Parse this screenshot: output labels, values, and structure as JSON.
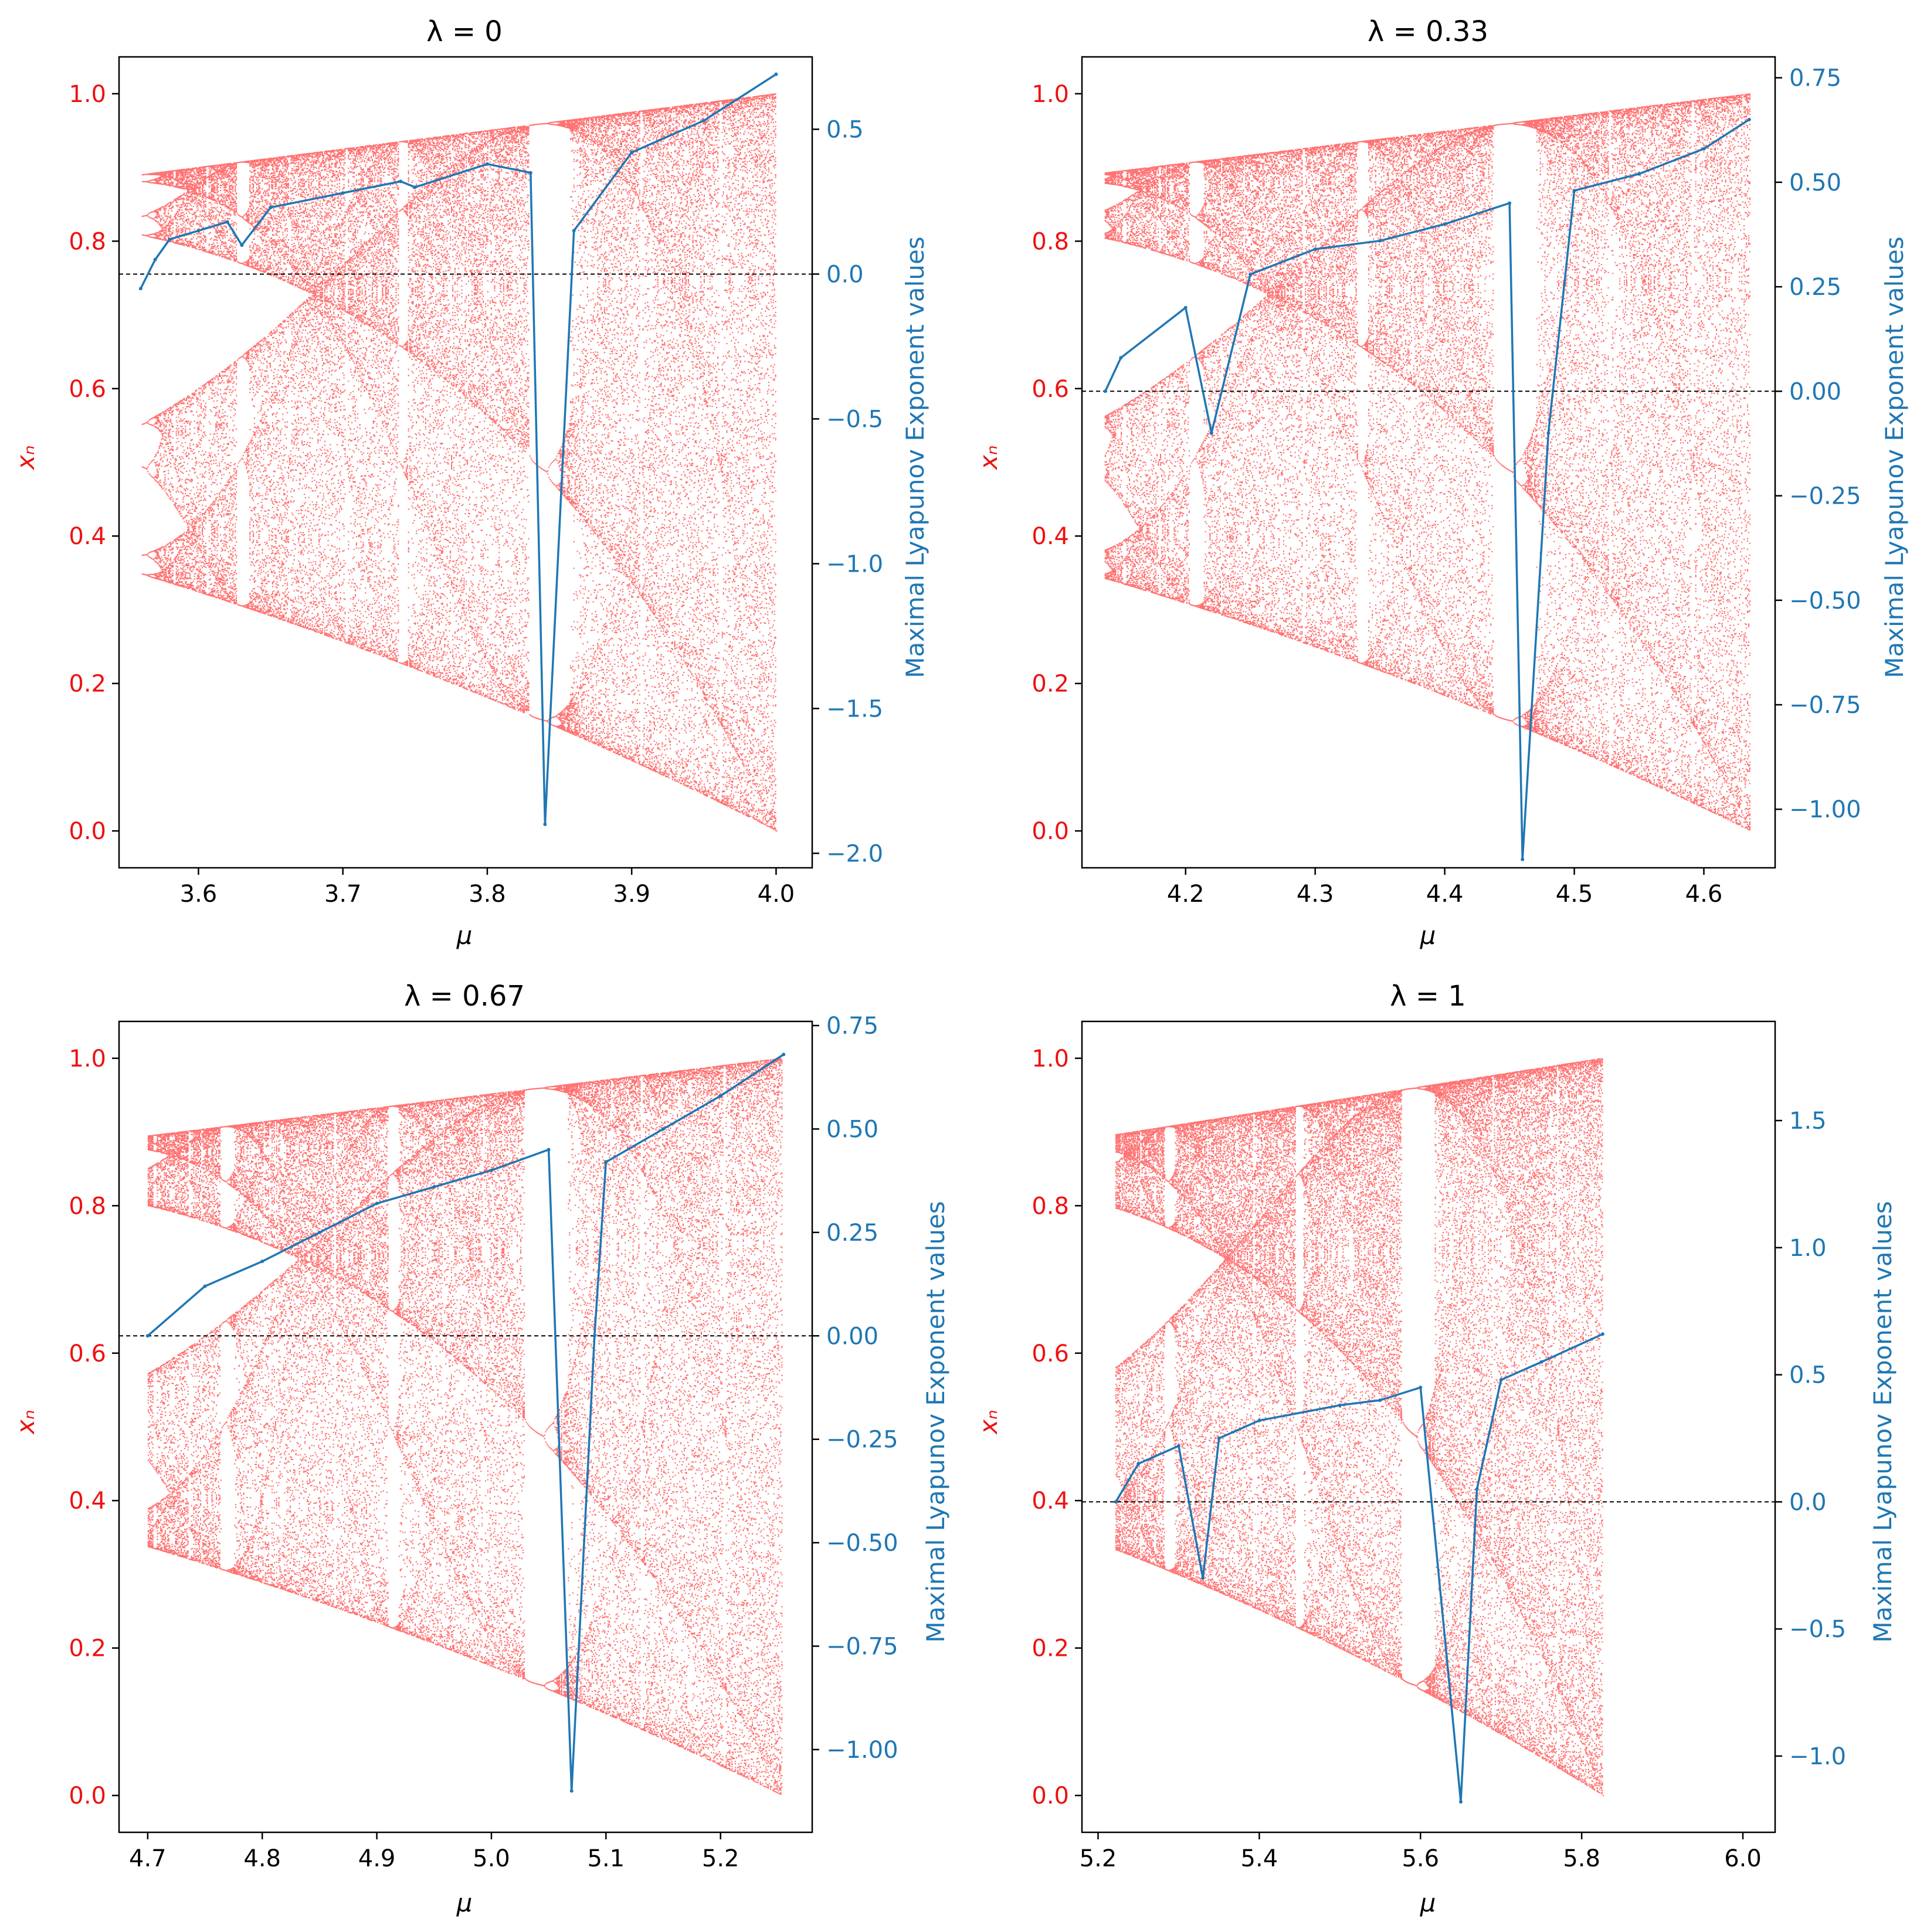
{
  "chart_data": [
    {
      "type": "scatter",
      "title": "λ = 0",
      "xlabel": "μ",
      "ylabel_left": "xₙ",
      "ylabel_right": "Maximal Lyapunov Exponent values",
      "xlim": [
        3.545,
        4.025
      ],
      "xticks": [
        "3.6",
        "3.7",
        "3.8",
        "3.9",
        "4.0"
      ],
      "xtick_values": [
        3.6,
        3.7,
        3.8,
        3.9,
        4.0
      ],
      "ylim_left": [
        -0.05,
        1.05
      ],
      "yticks_left": [
        "0.0",
        "0.2",
        "0.4",
        "0.6",
        "0.8",
        "1.0"
      ],
      "ylim_right": [
        -2.05,
        0.75
      ],
      "yticks_right": [
        "−2.0",
        "−1.5",
        "−1.0",
        "−0.5",
        "0.0",
        "0.5"
      ],
      "ytick_values_right": [
        -2.0,
        -1.5,
        -1.0,
        -0.5,
        0.0,
        0.5
      ],
      "bifurcation": {
        "r_min": 3.5607,
        "r_max": 4.0,
        "scale": 1.0,
        "color": "#ff0000"
      },
      "lyapunov_color": "#1f77b4",
      "zero_line": 0.0,
      "series": [
        {
          "name": "Maximal Lyapunov Exponent",
          "x": [
            3.56,
            3.57,
            3.58,
            3.6,
            3.62,
            3.63,
            3.65,
            3.7,
            3.74,
            3.75,
            3.8,
            3.83,
            3.84,
            3.86,
            3.9,
            3.95,
            4.0
          ],
          "y": [
            -0.05,
            0.05,
            0.12,
            0.15,
            0.18,
            0.1,
            0.23,
            0.28,
            0.32,
            0.3,
            0.38,
            0.35,
            -1.9,
            0.15,
            0.42,
            0.53,
            0.69
          ]
        }
      ]
    },
    {
      "type": "scatter",
      "title": "λ = 0.33",
      "xlabel": "μ",
      "ylabel_left": "xₙ",
      "ylabel_right": "Maximal Lyapunov Exponent values",
      "xlim": [
        4.12,
        4.655
      ],
      "xticks": [
        "4.2",
        "4.3",
        "4.4",
        "4.5",
        "4.6"
      ],
      "xtick_values": [
        4.2,
        4.3,
        4.4,
        4.5,
        4.6
      ],
      "ylim_left": [
        -0.05,
        1.05
      ],
      "yticks_left": [
        "0.0",
        "0.2",
        "0.4",
        "0.6",
        "0.8",
        "1.0"
      ],
      "ylim_right": [
        -1.14,
        0.8
      ],
      "yticks_right": [
        "−1.00",
        "−0.75",
        "−0.50",
        "−0.25",
        "0.00",
        "0.25",
        "0.50",
        "0.75"
      ],
      "ytick_values_right": [
        -1.0,
        -0.75,
        -0.5,
        -0.25,
        0.0,
        0.25,
        0.5,
        0.75
      ],
      "bifurcation": {
        "r_min": 4.1375,
        "r_max": 4.635,
        "scale": 1.159,
        "color": "#ff0000"
      },
      "lyapunov_color": "#1f77b4",
      "zero_line": 0.0,
      "series": [
        {
          "name": "Maximal Lyapunov Exponent",
          "x": [
            4.138,
            4.15,
            4.2,
            4.22,
            4.25,
            4.3,
            4.35,
            4.4,
            4.45,
            4.46,
            4.48,
            4.5,
            4.55,
            4.6,
            4.635
          ],
          "y": [
            0.0,
            0.08,
            0.2,
            -0.1,
            0.28,
            0.34,
            0.36,
            0.4,
            0.45,
            -1.12,
            -0.1,
            0.48,
            0.52,
            0.58,
            0.65
          ]
        }
      ]
    },
    {
      "type": "scatter",
      "title": "λ = 0.67",
      "xlabel": "μ",
      "ylabel_left": "xₙ",
      "ylabel_right": "Maximal Lyapunov Exponent values",
      "xlim": [
        4.675,
        5.28
      ],
      "xticks": [
        "4.7",
        "4.8",
        "4.9",
        "5.0",
        "5.1",
        "5.2"
      ],
      "xtick_values": [
        4.7,
        4.8,
        4.9,
        5.0,
        5.1,
        5.2
      ],
      "ylim_left": [
        -0.05,
        1.05
      ],
      "yticks_left": [
        "0.0",
        "0.2",
        "0.4",
        "0.6",
        "0.8",
        "1.0"
      ],
      "ylim_right": [
        -1.2,
        0.76
      ],
      "yticks_right": [
        "−1.00",
        "−0.75",
        "−0.50",
        "−0.25",
        "0.00",
        "0.25",
        "0.50",
        "0.75"
      ],
      "ytick_values_right": [
        -1.0,
        -0.75,
        -0.5,
        -0.25,
        0.0,
        0.25,
        0.5,
        0.75
      ],
      "bifurcation": {
        "r_min": 4.7,
        "r_max": 5.255,
        "scale": 1.3135,
        "color": "#ff0000"
      },
      "lyapunov_color": "#1f77b4",
      "zero_line": 0.0,
      "series": [
        {
          "name": "Maximal Lyapunov Exponent",
          "x": [
            4.7,
            4.75,
            4.8,
            4.85,
            4.9,
            4.95,
            5.0,
            5.05,
            5.07,
            5.09,
            5.1,
            5.15,
            5.2,
            5.255
          ],
          "y": [
            0.0,
            0.12,
            0.18,
            0.25,
            0.32,
            0.36,
            0.4,
            0.45,
            -1.1,
            0.0,
            0.42,
            0.5,
            0.58,
            0.68
          ]
        }
      ]
    },
    {
      "type": "scatter",
      "title": "λ = 1",
      "xlabel": "μ",
      "ylabel_left": "xₙ",
      "ylabel_right": "Maximal Lyapunov Exponent values",
      "xlim": [
        5.18,
        6.04
      ],
      "xticks": [
        "5.2",
        "5.4",
        "5.6",
        "5.8",
        "6.0"
      ],
      "xtick_values": [
        5.2,
        5.4,
        5.6,
        5.8,
        6.0
      ],
      "ylim_left": [
        -0.05,
        1.05
      ],
      "yticks_left": [
        "0.0",
        "0.2",
        "0.4",
        "0.6",
        "0.8",
        "1.0"
      ],
      "ylim_right": [
        -1.3,
        1.89
      ],
      "yticks_right": [
        "−1.0",
        "−0.5",
        "0.0",
        "0.5",
        "1.0",
        "1.5"
      ],
      "ytick_values_right": [
        -1.0,
        -0.5,
        0.0,
        0.5,
        1.0,
        1.5
      ],
      "bifurcation": {
        "r_min": 5.2215,
        "r_max": 5.826,
        "scale": 1.4565,
        "color": "#ff0000"
      },
      "lyapunov_color": "#1f77b4",
      "zero_line": 0.0,
      "series": [
        {
          "name": "Maximal Lyapunov Exponent",
          "x": [
            5.222,
            5.25,
            5.3,
            5.33,
            5.35,
            5.4,
            5.5,
            5.55,
            5.6,
            5.65,
            5.67,
            5.7,
            5.75,
            5.826
          ],
          "y": [
            0.0,
            0.15,
            0.22,
            -0.3,
            0.25,
            0.32,
            0.38,
            0.4,
            0.45,
            -1.18,
            0.05,
            0.48,
            0.55,
            0.66
          ]
        }
      ]
    }
  ]
}
